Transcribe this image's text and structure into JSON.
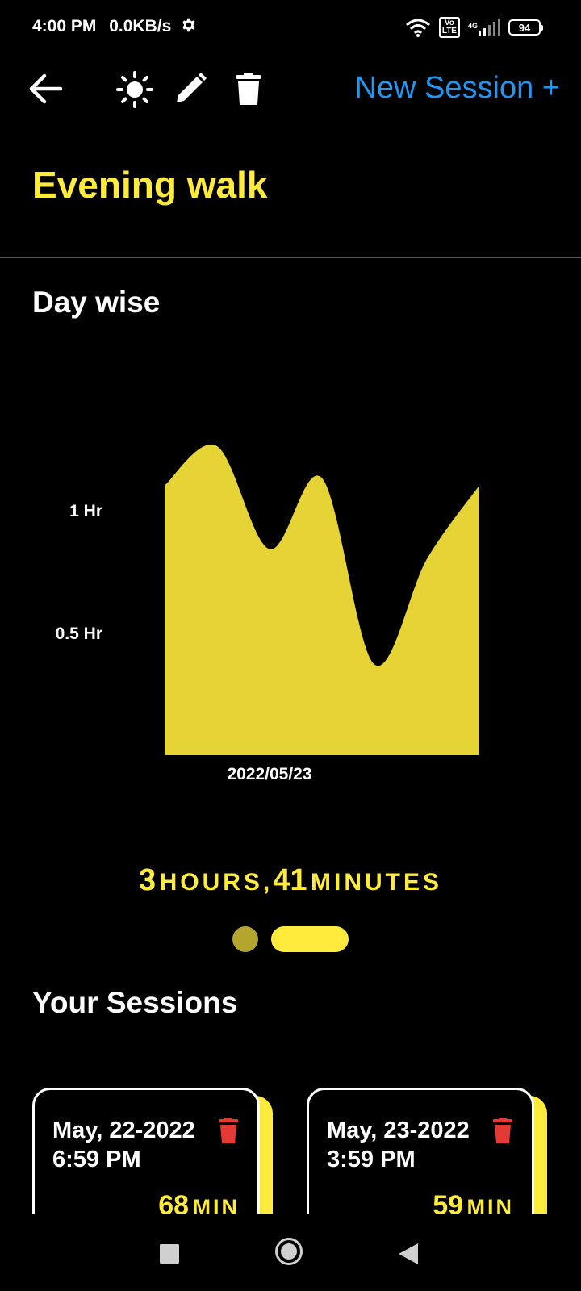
{
  "status_bar": {
    "time": "4:00 PM",
    "speed": "0.0KB/s",
    "battery": "94",
    "volte": "Vo\nLTE",
    "network": "4G"
  },
  "app_bar": {
    "new_session_label": "New Session +"
  },
  "page_title": "Evening walk",
  "day_wise": {
    "title": "Day wise"
  },
  "chart_data": {
    "type": "area",
    "color": "#e6d335",
    "y_ticks": [
      "1 Hr",
      "0.5 Hr"
    ],
    "y_tick_values": [
      1,
      0.5
    ],
    "x_tick_labels": [
      "2022/05/23"
    ],
    "ylim": [
      0,
      1.1
    ],
    "grid": false,
    "values": [
      1.1,
      1.26,
      0.84,
      1.13,
      0.37,
      0.8,
      1.1
    ]
  },
  "total_duration": {
    "hours": "3",
    "hours_unit": "HOURS,",
    "minutes": "41",
    "minutes_unit": "MINUTES"
  },
  "sessions_title": "Your Sessions",
  "sessions": [
    {
      "date": "May, 22-2022",
      "time": "6:59 PM",
      "minutes": "68",
      "unit": "MIN"
    },
    {
      "date": "May, 23-2022",
      "time": "3:59 PM",
      "minutes": "59",
      "unit": "MIN"
    }
  ],
  "colors": {
    "accent": "#ffeb3b",
    "link": "#2196f3",
    "delete": "#e53935",
    "background": "#000000"
  }
}
